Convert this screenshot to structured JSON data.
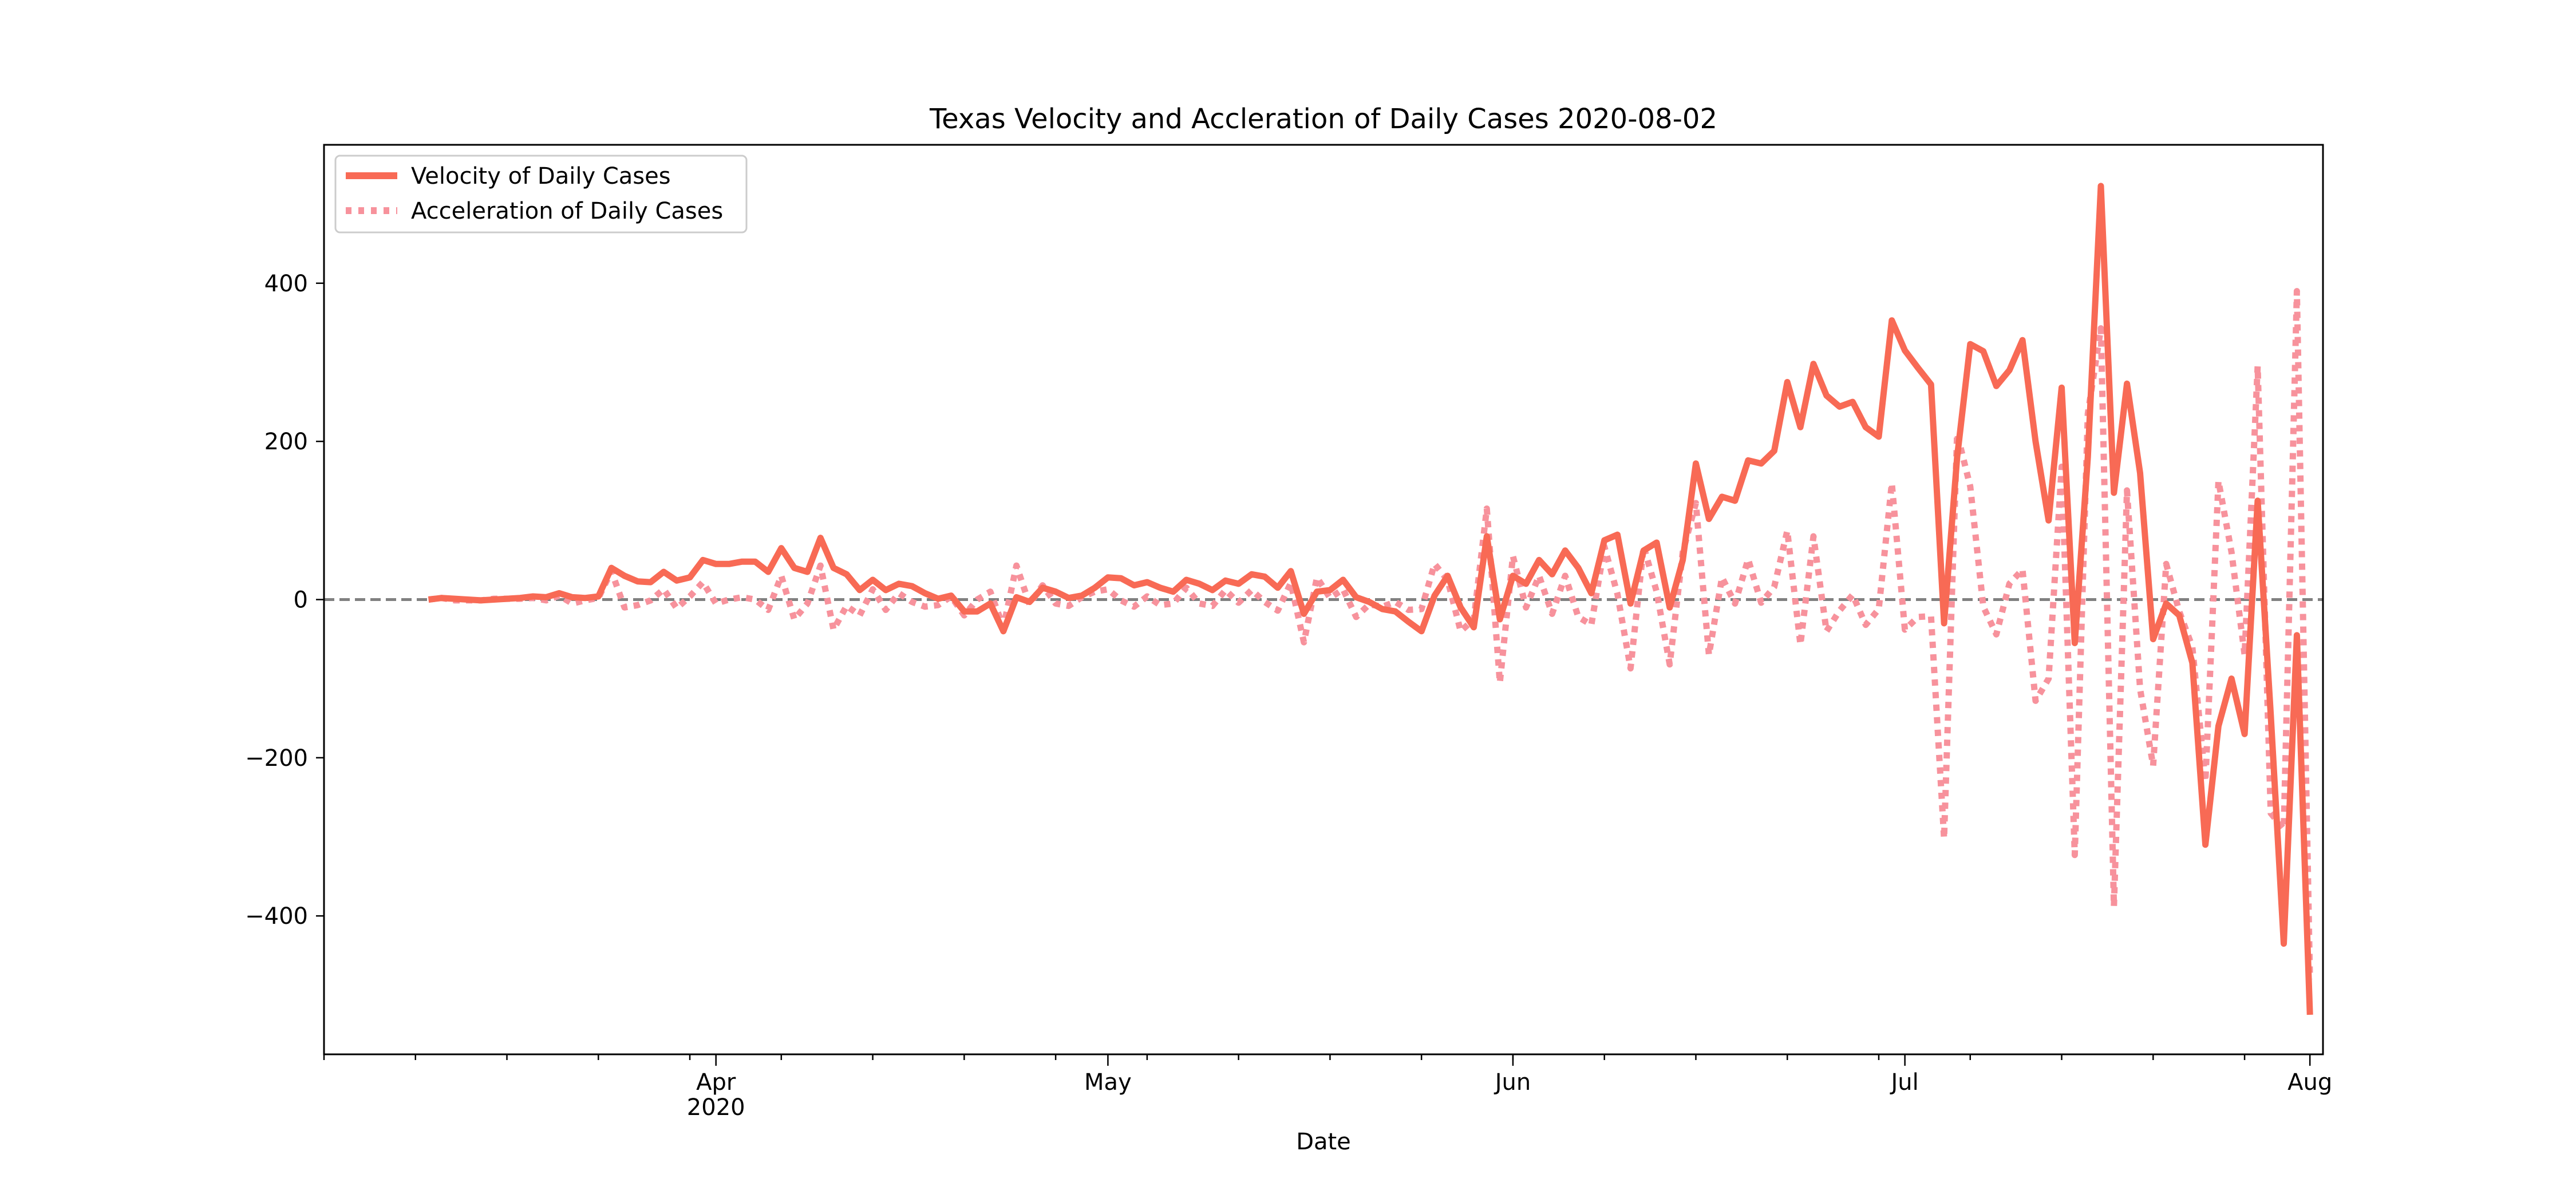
{
  "chart_data": {
    "type": "line",
    "title": "Texas Velocity and Accleration of Daily Cases 2020-08-02",
    "xlabel": "Date",
    "ylabel": "",
    "ylim": [
      -575,
      575
    ],
    "xlim": [
      "2020-03-02",
      "2020-08-02"
    ],
    "grid": false,
    "legend_position": "upper left",
    "x_ticks": [
      {
        "date": "2020-04-01",
        "label": "Apr",
        "sublabel": "2020"
      },
      {
        "date": "2020-05-01",
        "label": "May",
        "sublabel": ""
      },
      {
        "date": "2020-06-01",
        "label": "Jun",
        "sublabel": ""
      },
      {
        "date": "2020-07-01",
        "label": "Jul",
        "sublabel": ""
      },
      {
        "date": "2020-08-01",
        "label": "Aug",
        "sublabel": ""
      }
    ],
    "y_ticks": [
      {
        "value": 400,
        "label": "400"
      },
      {
        "value": 200,
        "label": "200"
      },
      {
        "value": 0,
        "label": "0"
      },
      {
        "value": -200,
        "label": "−200"
      },
      {
        "value": -400,
        "label": "−400"
      }
    ],
    "reference_line": {
      "value": 0,
      "style": "dashed",
      "color": "#808080"
    },
    "x_start": "2020-03-10",
    "series": [
      {
        "name": "Velocity of Daily Cases",
        "color": "#f86a55",
        "style": "solid",
        "values": [
          0,
          2,
          1,
          0,
          -1,
          0,
          1,
          2,
          4,
          3,
          8,
          3,
          2,
          4,
          40,
          30,
          23,
          22,
          35,
          24,
          28,
          50,
          45,
          45,
          48,
          48,
          35,
          65,
          40,
          35,
          78,
          40,
          32,
          12,
          25,
          12,
          20,
          17,
          8,
          1,
          5,
          -15,
          -15,
          -5,
          -40,
          3,
          -3,
          15,
          10,
          2,
          5,
          15,
          28,
          27,
          18,
          22,
          15,
          10,
          25,
          20,
          12,
          24,
          20,
          32,
          29,
          15,
          36,
          -18,
          10,
          12,
          25,
          3,
          -3,
          -12,
          -15,
          -28,
          -40,
          5,
          30,
          -10,
          -35,
          80,
          -25,
          30,
          20,
          50,
          32,
          62,
          40,
          8,
          75,
          82,
          -5,
          62,
          72,
          -10,
          50,
          172,
          102,
          130,
          125,
          176,
          172,
          188,
          275,
          218,
          298,
          258,
          244,
          250,
          218,
          206,
          353,
          315,
          293,
          272,
          -30,
          180,
          323,
          314,
          270,
          290,
          328,
          200,
          100,
          268,
          -55,
          180,
          523,
          135,
          273,
          160,
          -50,
          -5,
          -20,
          -80,
          -310,
          -160,
          -100,
          -170,
          125,
          -145,
          -435,
          -45,
          -525
        ]
      },
      {
        "name": "Acceleration of Daily Cases",
        "color": "#f7929c",
        "style": "dotted",
        "values": [
          0,
          2,
          -1,
          -1,
          -1,
          1,
          1,
          1,
          2,
          -1,
          5,
          -5,
          -1,
          2,
          36,
          -10,
          -7,
          -1,
          13,
          -11,
          4,
          22,
          -5,
          0,
          3,
          0,
          -13,
          30,
          -25,
          -5,
          43,
          -38,
          -8,
          -20,
          13,
          -13,
          8,
          -3,
          -9,
          -7,
          4,
          -20,
          0,
          10,
          -35,
          43,
          -6,
          18,
          -5,
          -8,
          3,
          10,
          13,
          -1,
          -9,
          4,
          -7,
          -5,
          15,
          -5,
          -8,
          12,
          -4,
          12,
          -3,
          -14,
          21,
          -54,
          28,
          2,
          13,
          -22,
          -6,
          -9,
          -3,
          -13,
          -12,
          45,
          25,
          -40,
          -25,
          115,
          -105,
          55,
          -10,
          30,
          -18,
          30,
          -22,
          -32,
          67,
          7,
          -87,
          67,
          10,
          -82,
          60,
          122,
          -70,
          28,
          -5,
          51,
          -4,
          16,
          87,
          -57,
          80,
          -40,
          -14,
          6,
          -32,
          -12,
          147,
          -38,
          -22,
          -21,
          -302,
          210,
          143,
          -9,
          -44,
          20,
          38,
          -128,
          -100,
          168,
          -323,
          235,
          343,
          -388,
          138,
          -113,
          -210,
          45,
          -15,
          -60,
          -230,
          150,
          60,
          -70,
          295,
          -270,
          -290,
          390,
          -480
        ]
      }
    ]
  }
}
